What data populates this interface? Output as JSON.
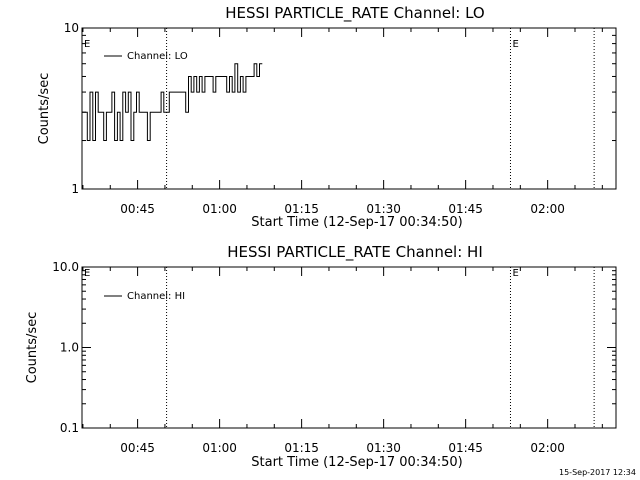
{
  "timestamp": "15-Sep-2017 12:34",
  "chart_data": [
    {
      "type": "line",
      "title": "HESSI PARTICLE_RATE Channel: LO",
      "xlabel": "Start Time (12-Sep-17 00:34:50)",
      "ylabel": "Counts/sec",
      "yscale": "log",
      "ylim": [
        1,
        10
      ],
      "y_tick_labels": [
        "1",
        "10"
      ],
      "x_unit": "minutes",
      "xlim": [
        34.83,
        132.5
      ],
      "x_ticks": [
        {
          "label": "00:45",
          "x": 45
        },
        {
          "label": "01:00",
          "x": 60
        },
        {
          "label": "01:15",
          "x": 75
        },
        {
          "label": "01:30",
          "x": 90
        },
        {
          "label": "01:45",
          "x": 105
        },
        {
          "label": "02:00",
          "x": 120
        }
      ],
      "vertical_lines_x": [
        50.3,
        113.2,
        128.5
      ],
      "flags": [
        {
          "label": "E",
          "x": 34.83
        },
        {
          "label": "E",
          "x": 113.2
        }
      ],
      "legend": {
        "label": "Channel: LO",
        "placement": "top-left"
      },
      "series": [
        {
          "name": "Channel: LO",
          "x": [
            34.83,
            35.3,
            35.8,
            36.3,
            36.8,
            37.3,
            37.8,
            38.3,
            38.8,
            39.3,
            39.8,
            40.3,
            40.8,
            41.3,
            41.8,
            42.3,
            42.8,
            43.3,
            43.8,
            44.3,
            44.8,
            45.3,
            45.8,
            46.3,
            46.8,
            47.3,
            47.8,
            48.3,
            48.8,
            49.3,
            49.8,
            50.3,
            50.8,
            51.3,
            51.8,
            52.3,
            52.8,
            53.3,
            53.8,
            54.3,
            54.8,
            55.3,
            55.8,
            56.3,
            56.8,
            57.3,
            57.8,
            58.3,
            58.8,
            59.3,
            59.8,
            60.3,
            60.8,
            61.3,
            61.8,
            62.3,
            62.8,
            63.3,
            63.8,
            64.3,
            64.8,
            65.3,
            65.8,
            66.3,
            66.8,
            67.3
          ],
          "values": [
            3,
            3,
            2,
            4,
            2,
            4,
            3,
            3,
            2,
            3,
            3,
            4,
            2,
            3,
            2,
            4,
            3,
            4,
            2,
            3,
            4,
            3,
            3,
            3,
            2,
            3,
            3,
            3,
            3,
            4,
            3,
            3,
            4,
            4,
            4,
            4,
            4,
            4,
            3,
            5,
            4,
            5,
            4,
            5,
            4,
            5,
            5,
            5,
            4,
            5,
            5,
            5,
            5,
            4,
            5,
            4,
            6,
            4,
            5,
            4,
            5,
            5,
            5,
            6,
            5,
            6
          ]
        }
      ]
    },
    {
      "type": "line",
      "title": "HESSI PARTICLE_RATE Channel: HI",
      "xlabel": "Start Time (12-Sep-17 00:34:50)",
      "ylabel": "Counts/sec",
      "yscale": "log",
      "ylim": [
        0.1,
        10
      ],
      "y_tick_labels": [
        "0.1",
        "1.0",
        "10.0"
      ],
      "x_unit": "minutes",
      "xlim": [
        34.83,
        132.5
      ],
      "x_ticks": [
        {
          "label": "00:45",
          "x": 45
        },
        {
          "label": "01:00",
          "x": 60
        },
        {
          "label": "01:15",
          "x": 75
        },
        {
          "label": "01:30",
          "x": 90
        },
        {
          "label": "01:45",
          "x": 105
        },
        {
          "label": "02:00",
          "x": 120
        }
      ],
      "vertical_lines_x": [
        50.3,
        113.2,
        128.5
      ],
      "flags": [
        {
          "label": "E",
          "x": 34.83
        },
        {
          "label": "E",
          "x": 113.2
        }
      ],
      "legend": {
        "label": "Channel: HI",
        "placement": "top-left"
      },
      "series": [
        {
          "name": "Channel: HI",
          "x": [],
          "values": []
        }
      ]
    }
  ]
}
